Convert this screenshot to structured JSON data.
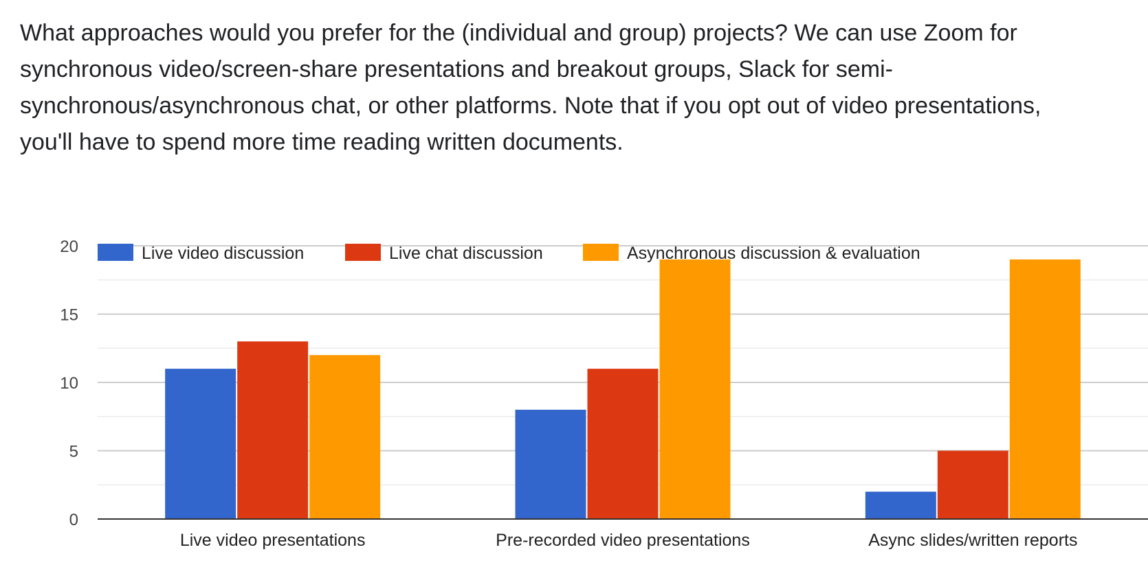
{
  "question": "What approaches would you prefer for the (individual and group) projects? We can use Zoom for synchronous video/screen-share presentations and breakout groups, Slack for semi-synchronous/asynchronous chat, or other platforms. Note that if you opt out of video presentations, you'll have to spend more time reading written documents.",
  "chart_data": {
    "type": "bar",
    "categories": [
      "Live video presentations",
      "Pre-recorded video presentations",
      "Async slides/written reports"
    ],
    "series": [
      {
        "name": "Live video discussion",
        "color": "#3366cc",
        "values": [
          11,
          8,
          2
        ]
      },
      {
        "name": "Live chat discussion",
        "color": "#dc3912",
        "values": [
          13,
          11,
          5
        ]
      },
      {
        "name": "Asynchronous discussion & evaluation",
        "color": "#ff9900",
        "values": [
          12,
          19,
          19
        ]
      }
    ],
    "ylim": [
      0,
      20
    ],
    "yticks": [
      0,
      5,
      10,
      15,
      20
    ],
    "grid": true,
    "legend_position": "top"
  }
}
